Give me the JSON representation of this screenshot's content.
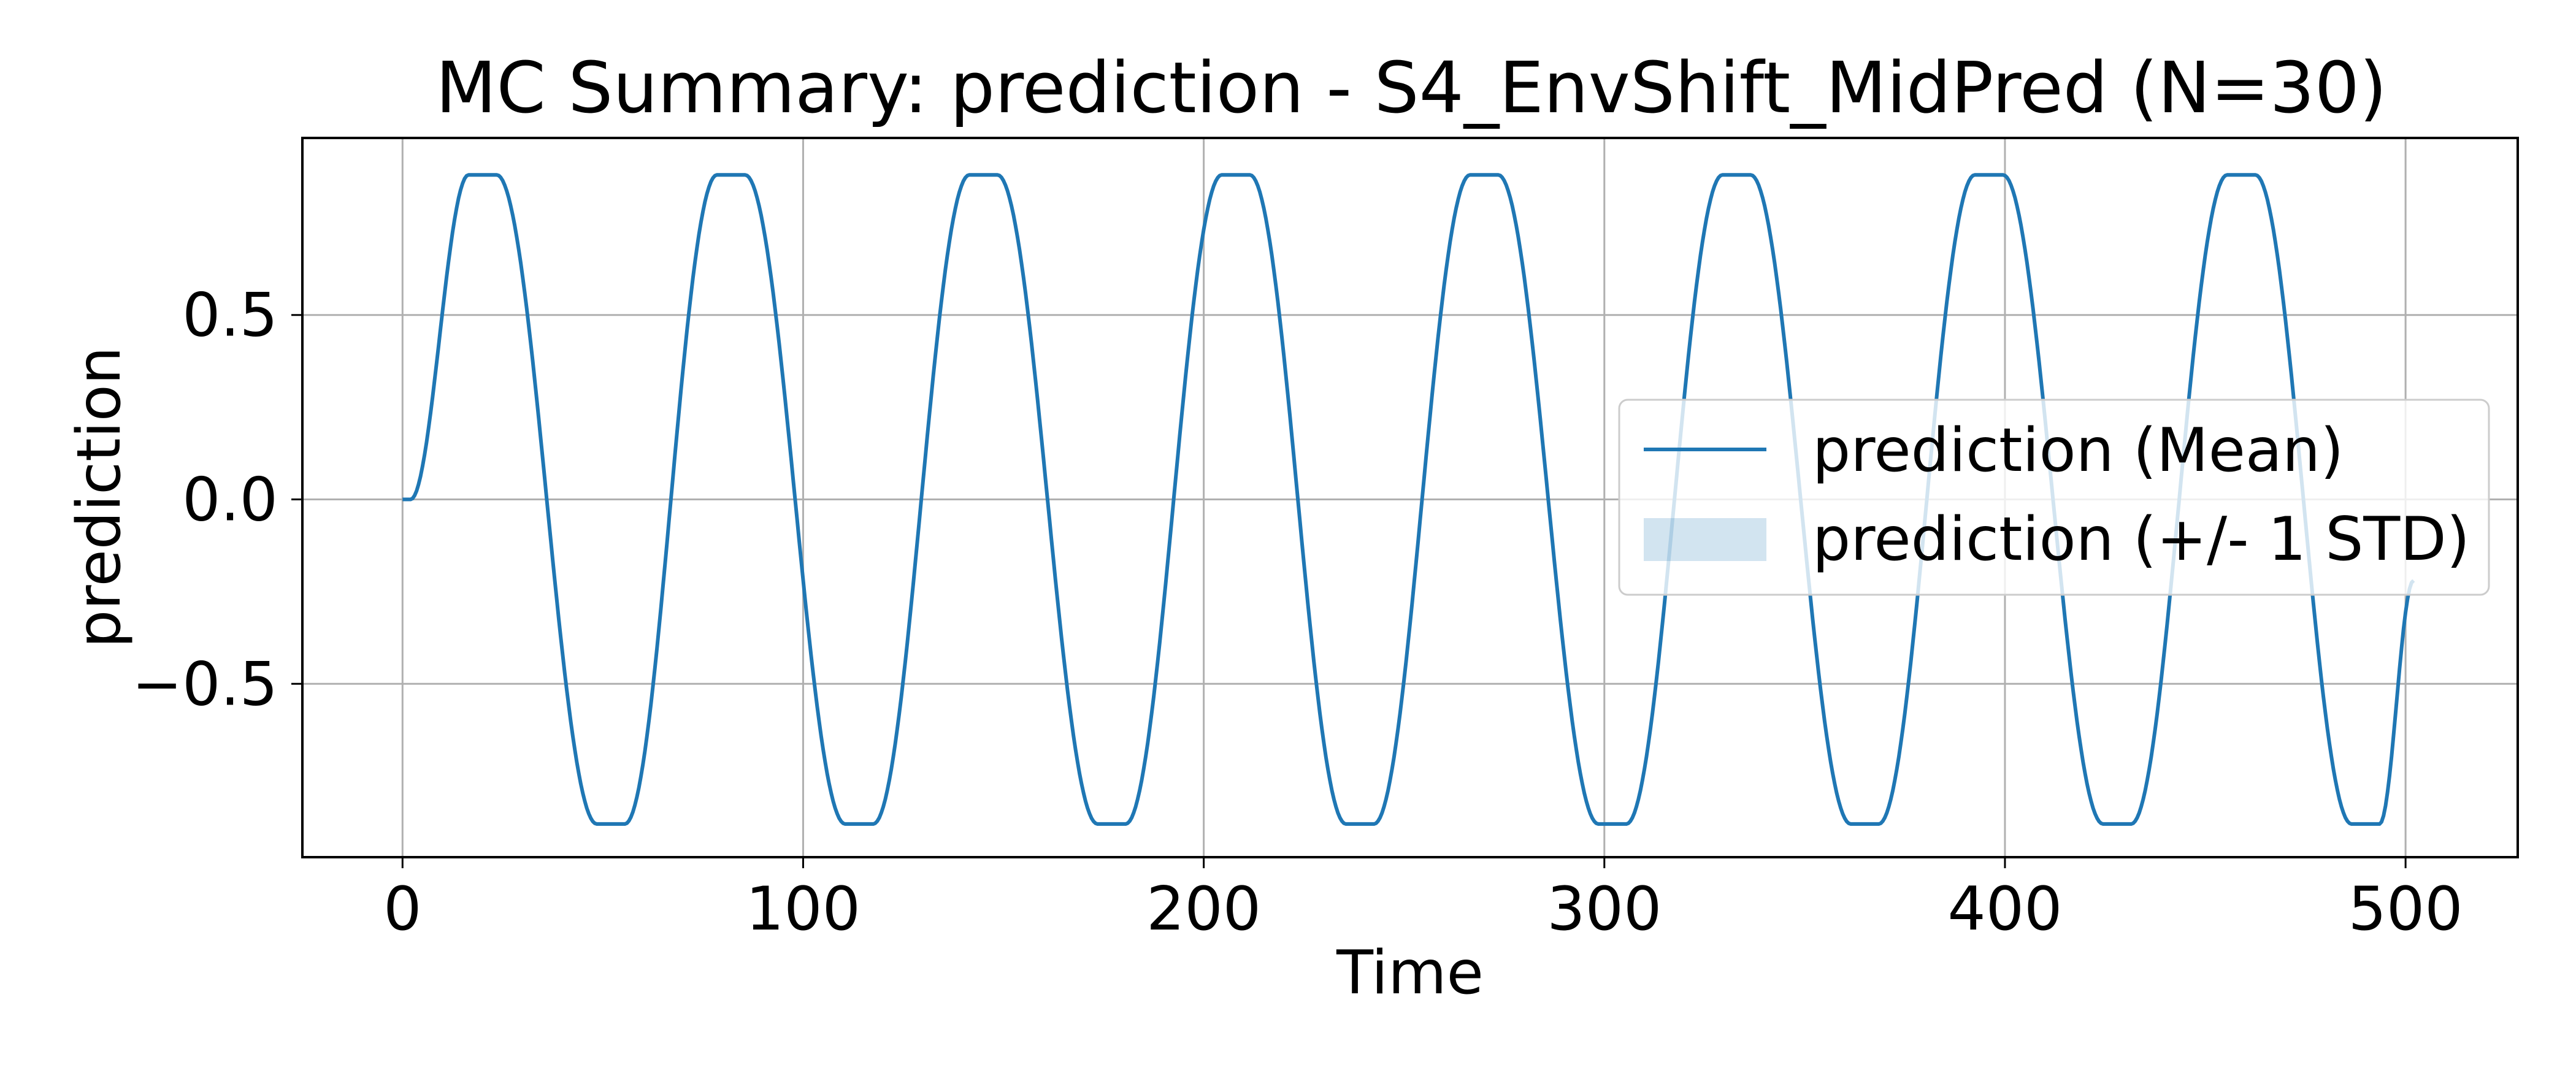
{
  "chart_data": {
    "type": "line",
    "title": "MC Summary: prediction - S4_EnvShift_MidPred (N=30)",
    "xlabel": "Time",
    "ylabel": "prediction",
    "xlim": [
      -25,
      528
    ],
    "ylim": [
      -0.97,
      0.98
    ],
    "x_ticks": [
      0,
      100,
      200,
      300,
      400,
      500
    ],
    "x_tick_labels": [
      "0",
      "100",
      "200",
      "300",
      "400",
      "500"
    ],
    "y_ticks": [
      0.5,
      0.0,
      -0.5
    ],
    "y_tick_labels": [
      "0.5",
      "0.0",
      "−0.5"
    ],
    "grid": true,
    "legend_position": "center-right",
    "colors": {
      "mean_line": "#1f77b4",
      "std_band": "#1f77b4",
      "grid": "#b0b0b0"
    },
    "series": [
      {
        "name": "prediction (Mean)",
        "style": "line"
      },
      {
        "name": "prediction (+/- 1 STD)",
        "style": "band",
        "band_alpha": 0.2
      }
    ],
    "signal": {
      "x_start": 0,
      "x_end": 502,
      "flat_until": 2,
      "start_y": 0.0,
      "end_y": -0.22,
      "amplitude": 0.88,
      "period": 63,
      "peak_times": [
        20,
        82,
        145,
        208,
        270,
        333,
        396,
        459
      ],
      "trough_times": [
        52,
        114,
        177,
        239,
        302,
        365,
        428,
        490
      ],
      "plateau_width": 7,
      "std": 0.005
    }
  }
}
